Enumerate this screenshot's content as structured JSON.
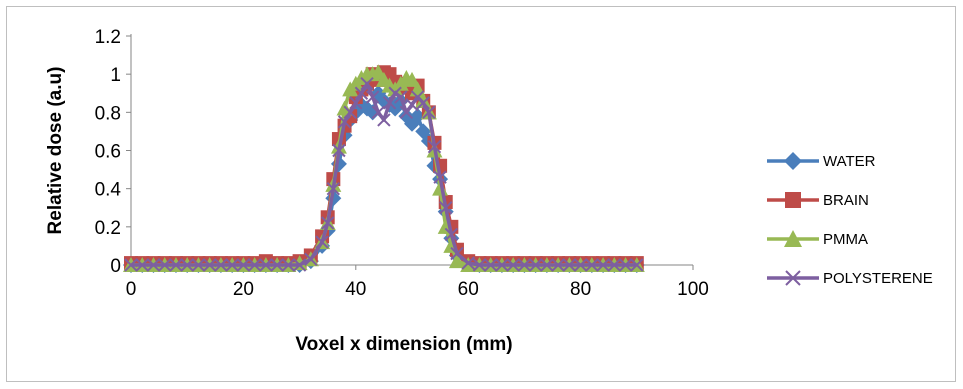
{
  "chart_data": {
    "type": "line",
    "title": "",
    "xlabel": "Voxel x dimension (mm)",
    "ylabel": "Relative dose (a.u)",
    "xlim": [
      0,
      100
    ],
    "ylim": [
      0,
      1.2
    ],
    "x_ticks": [
      "0",
      "20",
      "40",
      "60",
      "80",
      "100"
    ],
    "y_ticks": [
      "0",
      "0.2",
      "0.4",
      "0.6",
      "0.8",
      "1",
      "1.2"
    ],
    "grid": false,
    "legend_position": "right",
    "x": [
      0,
      2,
      4,
      6,
      8,
      10,
      12,
      14,
      16,
      18,
      20,
      22,
      24,
      26,
      28,
      30,
      32,
      34,
      35,
      36,
      37,
      38,
      39,
      40,
      41,
      42,
      43,
      44,
      45,
      46,
      47,
      48,
      49,
      50,
      51,
      52,
      53,
      54,
      55,
      56,
      57,
      58,
      60,
      62,
      64,
      66,
      68,
      70,
      72,
      74,
      76,
      78,
      80,
      82,
      84,
      86,
      88,
      90
    ],
    "series": [
      {
        "name": "WATER",
        "color": "#4a7ebb",
        "marker": "diamond",
        "values": [
          0.0,
          0.0,
          0.0,
          0.0,
          0.0,
          0.0,
          0.0,
          0.0,
          0.0,
          0.0,
          0.0,
          0.0,
          0.0,
          0.0,
          0.0,
          0.0,
          0.02,
          0.1,
          0.18,
          0.35,
          0.53,
          0.68,
          0.76,
          0.8,
          0.84,
          0.82,
          0.8,
          0.9,
          0.86,
          0.84,
          0.82,
          0.86,
          0.78,
          0.74,
          0.78,
          0.7,
          0.65,
          0.52,
          0.45,
          0.28,
          0.14,
          0.05,
          0.01,
          0.0,
          0.0,
          0.0,
          0.0,
          0.0,
          0.0,
          0.0,
          0.0,
          0.0,
          0.0,
          0.0,
          0.0,
          0.0,
          0.0,
          0.0
        ]
      },
      {
        "name": "BRAIN",
        "color": "#be4b48",
        "marker": "square",
        "values": [
          0.01,
          0.01,
          0.01,
          0.01,
          0.01,
          0.01,
          0.01,
          0.01,
          0.01,
          0.01,
          0.01,
          0.01,
          0.02,
          0.01,
          0.01,
          0.02,
          0.05,
          0.15,
          0.25,
          0.45,
          0.66,
          0.73,
          0.78,
          0.88,
          0.92,
          0.95,
          1.0,
          0.97,
          1.01,
          1.0,
          0.96,
          0.93,
          0.95,
          0.9,
          0.94,
          0.86,
          0.8,
          0.64,
          0.52,
          0.33,
          0.2,
          0.08,
          0.02,
          0.01,
          0.01,
          0.01,
          0.01,
          0.01,
          0.01,
          0.01,
          0.01,
          0.01,
          0.01,
          0.01,
          0.01,
          0.01,
          0.01,
          0.01
        ]
      },
      {
        "name": "PMMA",
        "color": "#98b954",
        "marker": "triangle",
        "values": [
          0.0,
          0.0,
          0.0,
          0.0,
          0.0,
          0.0,
          0.0,
          0.0,
          0.0,
          0.0,
          0.0,
          0.0,
          0.0,
          0.0,
          0.0,
          0.01,
          0.03,
          0.12,
          0.22,
          0.42,
          0.62,
          0.82,
          0.92,
          0.95,
          0.98,
          1.0,
          1.0,
          1.01,
          0.97,
          0.94,
          0.92,
          0.95,
          0.98,
          0.97,
          0.92,
          0.86,
          0.8,
          0.6,
          0.4,
          0.2,
          0.1,
          0.02,
          0.0,
          0.0,
          0.0,
          0.0,
          0.0,
          0.0,
          0.0,
          0.0,
          0.0,
          0.0,
          0.0,
          0.0,
          0.0,
          0.0,
          0.0,
          0.0
        ]
      },
      {
        "name": "POLYSTERENE",
        "color": "#7d5fa0",
        "marker": "x",
        "values": [
          0.0,
          0.0,
          0.0,
          0.0,
          0.0,
          0.0,
          0.0,
          0.0,
          0.0,
          0.0,
          0.0,
          0.0,
          0.0,
          0.0,
          0.0,
          0.0,
          0.03,
          0.12,
          0.22,
          0.4,
          0.6,
          0.75,
          0.8,
          0.85,
          0.9,
          0.95,
          0.88,
          0.8,
          0.76,
          0.85,
          0.9,
          0.88,
          0.8,
          0.84,
          0.88,
          0.85,
          0.8,
          0.62,
          0.46,
          0.3,
          0.16,
          0.06,
          0.01,
          0.0,
          0.0,
          0.0,
          0.0,
          0.0,
          0.0,
          0.0,
          0.0,
          0.0,
          0.0,
          0.0,
          0.0,
          0.0,
          0.0,
          0.0
        ]
      }
    ]
  }
}
